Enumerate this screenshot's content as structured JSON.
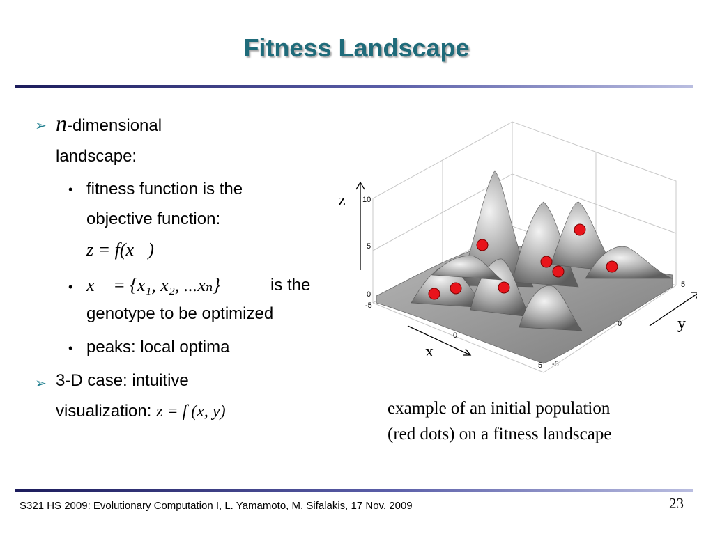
{
  "slide": {
    "title": "Fitness Landscape",
    "page_number": "23",
    "footer": "S321 HS 2009: Evolutionary Computation I, L. Yamamoto, M. Sifalakis, 17 Nov. 2009"
  },
  "bullets": {
    "b1_var": "n",
    "b1_rest": "-dimensional",
    "b1_line2": "landscape:",
    "sub1_line1": "fitness function is the",
    "sub1_line2": "objective function:",
    "sub1_math": "z = f(x⃗)",
    "sub2_math": "x⃗ = {x₁, x₂, ...xₙ}",
    "sub2_text": "is the",
    "sub2_line2": "genotype to be optimized",
    "sub3": "peaks: local optima",
    "b2_line1": "3-D case: intuitive",
    "b2_line2_plain": "visualization:",
    "b2_line2_math": "z = f (x, y)"
  },
  "figure": {
    "z_label": "z",
    "y_label": "y",
    "x_label": "x",
    "z_ticks": [
      "10",
      "5",
      "0"
    ],
    "left_ticks": [
      "-5",
      "0",
      "5"
    ],
    "right_ticks": [
      "-5",
      "0",
      "5"
    ],
    "dot_color": "#e8141b",
    "surface_color": "#9a9a9a"
  },
  "caption": {
    "line1": "example of an initial population",
    "line2": "(red dots) on a fitness landscape"
  },
  "colors": {
    "title": "#1f6b7a",
    "bullet_arrow": "#1f7f8f",
    "rule": "#1c1c5c"
  }
}
